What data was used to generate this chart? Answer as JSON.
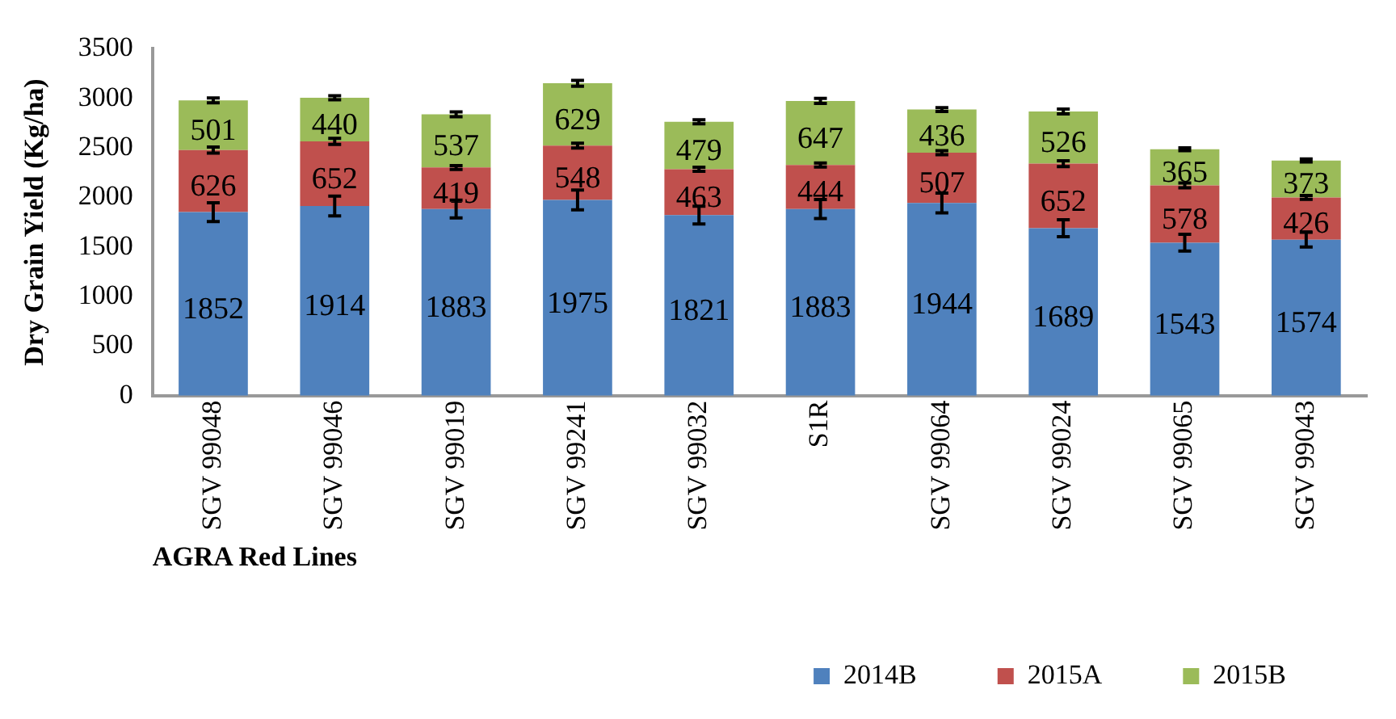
{
  "chart_data": {
    "type": "bar",
    "stacked": true,
    "xlabel": "AGRA Red Lines",
    "ylabel": "Dry Grain Yield (Kg/ha)",
    "categories": [
      "SGV 99048",
      "SGV 99046",
      "SGV 99019",
      "SGV 99241",
      "SGV 99032",
      "S1R",
      "SGV 99064",
      "SGV 99024",
      "SGV 99065",
      "SGV 99043"
    ],
    "series": [
      {
        "name": "2014B",
        "color": "#4f81bd",
        "values": [
          1852,
          1914,
          1883,
          1975,
          1821,
          1883,
          1944,
          1689,
          1543,
          1574
        ],
        "errors": [
          95,
          100,
          90,
          100,
          90,
          95,
          100,
          85,
          85,
          75
        ]
      },
      {
        "name": "2015A",
        "color": "#c0504d",
        "values": [
          626,
          652,
          419,
          548,
          463,
          444,
          507,
          652,
          578,
          426
        ],
        "errors": [
          30,
          30,
          20,
          25,
          20,
          20,
          20,
          30,
          25,
          20
        ]
      },
      {
        "name": "2015B",
        "color": "#9bbb59",
        "values": [
          501,
          440,
          537,
          629,
          479,
          647,
          436,
          526,
          365,
          373
        ],
        "errors": [
          25,
          20,
          25,
          30,
          20,
          25,
          20,
          25,
          15,
          15
        ]
      }
    ],
    "ylim": [
      0,
      3500
    ],
    "yticks": [
      0,
      500,
      1000,
      1500,
      2000,
      2500,
      3000,
      3500
    ],
    "grid": false,
    "legend": "bottom right",
    "data_labels": true
  }
}
